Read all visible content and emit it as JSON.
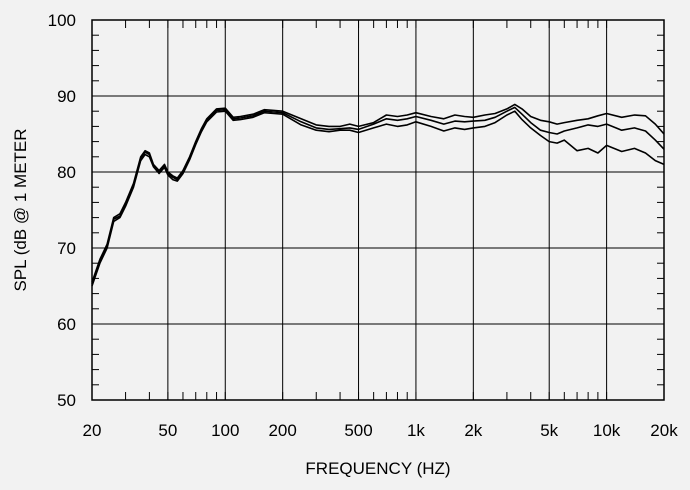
{
  "chart_data": {
    "type": "line",
    "title": "",
    "xlabel": "FREQUENCY  (HZ)",
    "ylabel": "SPL (dB @ 1 METER",
    "x_scale": "log",
    "xlim": [
      20,
      20000
    ],
    "ylim": [
      50,
      100
    ],
    "x_ticks": [
      {
        "value": 20,
        "label": "20"
      },
      {
        "value": 50,
        "label": "50"
      },
      {
        "value": 100,
        "label": "100"
      },
      {
        "value": 200,
        "label": "200"
      },
      {
        "value": 500,
        "label": "500"
      },
      {
        "value": 1000,
        "label": "1k"
      },
      {
        "value": 2000,
        "label": "2k"
      },
      {
        "value": 5000,
        "label": "5k"
      },
      {
        "value": 10000,
        "label": "10k"
      },
      {
        "value": 20000,
        "label": "20k"
      }
    ],
    "y_ticks": [
      {
        "value": 50,
        "label": "50"
      },
      {
        "value": 60,
        "label": "60"
      },
      {
        "value": 70,
        "label": "70"
      },
      {
        "value": 80,
        "label": "80"
      },
      {
        "value": 90,
        "label": "90"
      },
      {
        "value": 100,
        "label": "100"
      }
    ],
    "grid": true,
    "series": [
      {
        "x": [
          20,
          22,
          24,
          26,
          28,
          30,
          33,
          36,
          38,
          40,
          42,
          45,
          48,
          50,
          53,
          56,
          60,
          65,
          70,
          75,
          80,
          90,
          100,
          110,
          120,
          140,
          160,
          180,
          200,
          250,
          300,
          350,
          400,
          450,
          500,
          600,
          700,
          800,
          900,
          1000,
          1200,
          1400,
          1600,
          1800,
          2000,
          2300,
          2600,
          3000,
          3300,
          3600,
          4000,
          4500,
          5000,
          5500,
          6000,
          7000,
          8000,
          9000,
          10000,
          12000,
          14000,
          16000,
          18000,
          20000
        ],
        "values": [
          65.5,
          68.5,
          70.5,
          74,
          74.5,
          76,
          78.5,
          82,
          82.8,
          82.5,
          81,
          80.2,
          81,
          80,
          79.5,
          79.2,
          80.2,
          82,
          84,
          85.7,
          87,
          88.3,
          88.4,
          87.2,
          87.3,
          87.6,
          88.2,
          88.1,
          88.0,
          87.0,
          86.2,
          86.0,
          86.0,
          86.3,
          86.0,
          86.5,
          87.5,
          87.3,
          87.5,
          87.8,
          87.3,
          87.0,
          87.5,
          87.3,
          87.2,
          87.5,
          87.7,
          88.3,
          88.9,
          88.3,
          87.3,
          86.8,
          86.6,
          86.3,
          86.5,
          86.8,
          87.0,
          87.4,
          87.7,
          87.2,
          87.5,
          87.4,
          86.3,
          85.0
        ]
      },
      {
        "x": [
          20,
          22,
          24,
          26,
          28,
          30,
          33,
          36,
          38,
          40,
          42,
          45,
          48,
          50,
          53,
          56,
          60,
          65,
          70,
          75,
          80,
          90,
          100,
          110,
          120,
          140,
          160,
          180,
          200,
          250,
          300,
          350,
          400,
          450,
          500,
          600,
          700,
          800,
          900,
          1000,
          1200,
          1400,
          1600,
          1800,
          2000,
          2300,
          2600,
          3000,
          3300,
          3600,
          4000,
          4500,
          5000,
          5500,
          6000,
          7000,
          8000,
          9000,
          10000,
          12000,
          14000,
          16000,
          18000,
          20000
        ],
        "values": [
          65.3,
          68.3,
          70.3,
          73.8,
          74.2,
          75.8,
          78.3,
          81.8,
          82.6,
          82.3,
          80.9,
          80.0,
          80.8,
          79.8,
          79.3,
          79.0,
          80.0,
          81.8,
          83.8,
          85.5,
          86.8,
          88.1,
          88.2,
          87.0,
          87.1,
          87.4,
          88.0,
          87.9,
          87.8,
          86.6,
          85.8,
          85.6,
          85.7,
          85.8,
          85.6,
          86.3,
          87.0,
          86.8,
          87.0,
          87.3,
          86.8,
          86.3,
          86.7,
          86.6,
          86.7,
          86.8,
          87.2,
          88.0,
          88.5,
          87.6,
          86.5,
          85.5,
          85.2,
          85.0,
          85.4,
          85.8,
          86.2,
          86.0,
          86.3,
          85.5,
          85.8,
          85.4,
          84.2,
          83.0
        ]
      },
      {
        "x": [
          20,
          22,
          24,
          26,
          28,
          30,
          33,
          36,
          38,
          40,
          42,
          45,
          48,
          50,
          53,
          56,
          60,
          65,
          70,
          75,
          80,
          90,
          100,
          110,
          120,
          140,
          160,
          180,
          200,
          250,
          300,
          350,
          400,
          450,
          500,
          600,
          700,
          800,
          900,
          1000,
          1200,
          1400,
          1600,
          1800,
          2000,
          2300,
          2600,
          3000,
          3300,
          3600,
          4000,
          4500,
          5000,
          5500,
          6000,
          7000,
          8000,
          9000,
          10000,
          12000,
          14000,
          16000,
          18000,
          20000
        ],
        "values": [
          65.0,
          68.0,
          70.0,
          73.5,
          74.0,
          75.5,
          78.0,
          81.5,
          82.3,
          82.0,
          80.7,
          79.8,
          80.6,
          79.6,
          79.0,
          78.8,
          79.8,
          81.6,
          83.6,
          85.3,
          86.6,
          87.9,
          88.0,
          86.8,
          86.9,
          87.2,
          87.8,
          87.7,
          87.6,
          86.2,
          85.5,
          85.3,
          85.5,
          85.5,
          85.2,
          85.8,
          86.3,
          86.0,
          86.2,
          86.6,
          86.0,
          85.4,
          85.8,
          85.6,
          85.8,
          86.0,
          86.5,
          87.5,
          88.0,
          86.9,
          85.8,
          84.8,
          84.0,
          83.8,
          84.2,
          82.8,
          83.1,
          82.5,
          83.5,
          82.7,
          83.1,
          82.5,
          81.5,
          81.0
        ]
      }
    ]
  }
}
